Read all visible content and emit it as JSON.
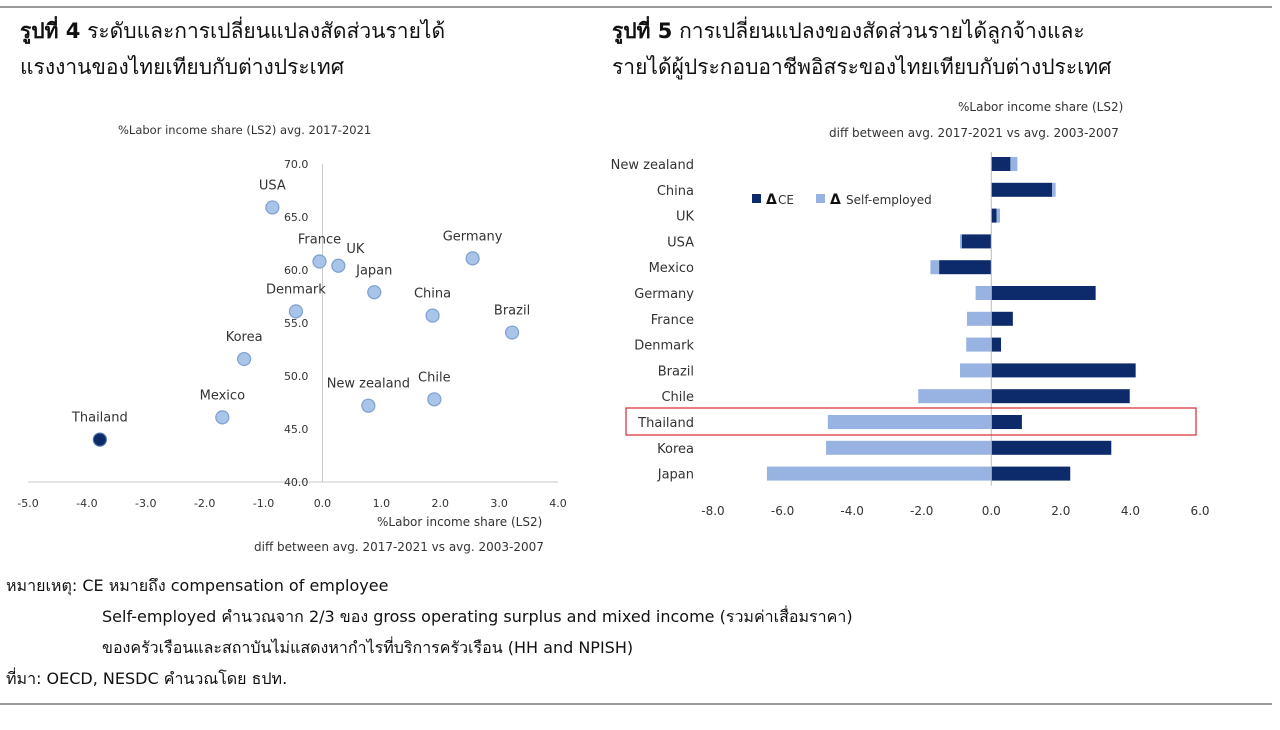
{
  "figure4": {
    "title_bold": "รูปที่ 4",
    "title_line1": "ระดับและการเปลี่ยนแปลงสัดส่วนรายได้",
    "title_line2": "แรงงานของไทยเทียบกับต่างประเทศ"
  },
  "figure5": {
    "title_bold": "รูปที่ 5",
    "title_line1": "การเปลี่ยนแปลงของสัดส่วนรายได้ลูกจ้างและ",
    "title_line2": "รายได้ผู้ประกอบอาชีพอิสระของไทยเทียบกับต่างประเทศ"
  },
  "chart_data": [
    {
      "type": "scatter",
      "ylabel": "%Labor income share (LS2) avg. 2017-2021",
      "xlabel_line1": "%Labor income share (LS2)",
      "xlabel_line2": "diff between avg. 2017-2021 vs avg. 2003-2007",
      "xlim": [
        -5,
        4
      ],
      "ylim": [
        40,
        70
      ],
      "x_ticks": [
        "-5.0",
        "-4.0",
        "-3.0",
        "-2.0",
        "-1.0",
        "0.0",
        "1.0",
        "2.0",
        "3.0",
        "4.0"
      ],
      "y_ticks": [
        "40.0",
        "45.0",
        "50.0",
        "55.0",
        "60.0",
        "65.0",
        "70.0"
      ],
      "colors": {
        "point": "#a9c4e9",
        "point_stroke": "#7e9fcf",
        "highlight": "#0d2a6b"
      },
      "points": [
        {
          "label": "USA",
          "x": -0.85,
          "y": 65.9
        },
        {
          "label": "France",
          "x": -0.05,
          "y": 60.8
        },
        {
          "label": "UK",
          "x": 0.27,
          "y": 60.4
        },
        {
          "label": "Germany",
          "x": 2.55,
          "y": 61.1
        },
        {
          "label": "Japan",
          "x": 0.88,
          "y": 57.9
        },
        {
          "label": "Denmark",
          "x": -0.45,
          "y": 56.1
        },
        {
          "label": "China",
          "x": 1.87,
          "y": 55.7
        },
        {
          "label": "Brazil",
          "x": 3.22,
          "y": 54.1
        },
        {
          "label": "Korea",
          "x": -1.33,
          "y": 51.6
        },
        {
          "label": "New zealand",
          "x": 0.78,
          "y": 47.2
        },
        {
          "label": "Chile",
          "x": 1.9,
          "y": 47.8
        },
        {
          "label": "Mexico",
          "x": -1.7,
          "y": 46.1
        },
        {
          "label": "Thailand",
          "x": -3.78,
          "y": 44.0,
          "highlight": true
        }
      ]
    },
    {
      "type": "bar",
      "orientation": "horizontal",
      "stacked": true,
      "title_line1": "%Labor income share (LS2)",
      "title_line2": "diff between avg. 2017-2021 vs avg. 2003-2007",
      "xlim": [
        -8,
        6
      ],
      "x_ticks": [
        "-8.0",
        "-6.0",
        "-4.0",
        "-2.0",
        "0.0",
        "2.0",
        "4.0",
        "6.0"
      ],
      "legend_position": "top-left",
      "highlight_category": "Thailand",
      "colors": {
        "ce": "#0d2a6b",
        "self": "#98b2e2",
        "highlight_box": "#d9282f",
        "zero_line": "#bbbbbb"
      },
      "categories": [
        "New zealand",
        "China",
        "UK",
        "USA",
        "Mexico",
        "Germany",
        "France",
        "Denmark",
        "Brazil",
        "Chile",
        "Thailand",
        "Korea",
        "Japan"
      ],
      "series": [
        {
          "name": "ΔCE",
          "legend_symbol": "Δ",
          "legend_text": "CE",
          "values": [
            0.55,
            1.75,
            0.15,
            -0.85,
            -1.5,
            3.0,
            0.62,
            0.28,
            4.15,
            3.98,
            0.88,
            3.45,
            2.27
          ]
        },
        {
          "name": "Δ Self-employed",
          "legend_symbol": "Δ",
          "legend_text": "Self-employed",
          "values": [
            0.2,
            0.1,
            0.1,
            -0.05,
            -0.25,
            -0.45,
            -0.7,
            -0.72,
            -0.9,
            -2.1,
            -4.7,
            -4.75,
            -6.45
          ]
        }
      ]
    }
  ],
  "notes": {
    "line1": "หมายเหตุ: CE หมายถึง compensation of employee",
    "line2": "Self-employed คำนวณจาก 2/3 ของ gross operating surplus and mixed income (รวมค่าเสื่อมราคา)",
    "line3": "ของครัวเรือนและสถาบันไม่แสดงหากำไรที่บริการครัวเรือน (HH and NPISH)",
    "source": "ที่มา: OECD, NESDC คำนวณโดย ธปท."
  }
}
